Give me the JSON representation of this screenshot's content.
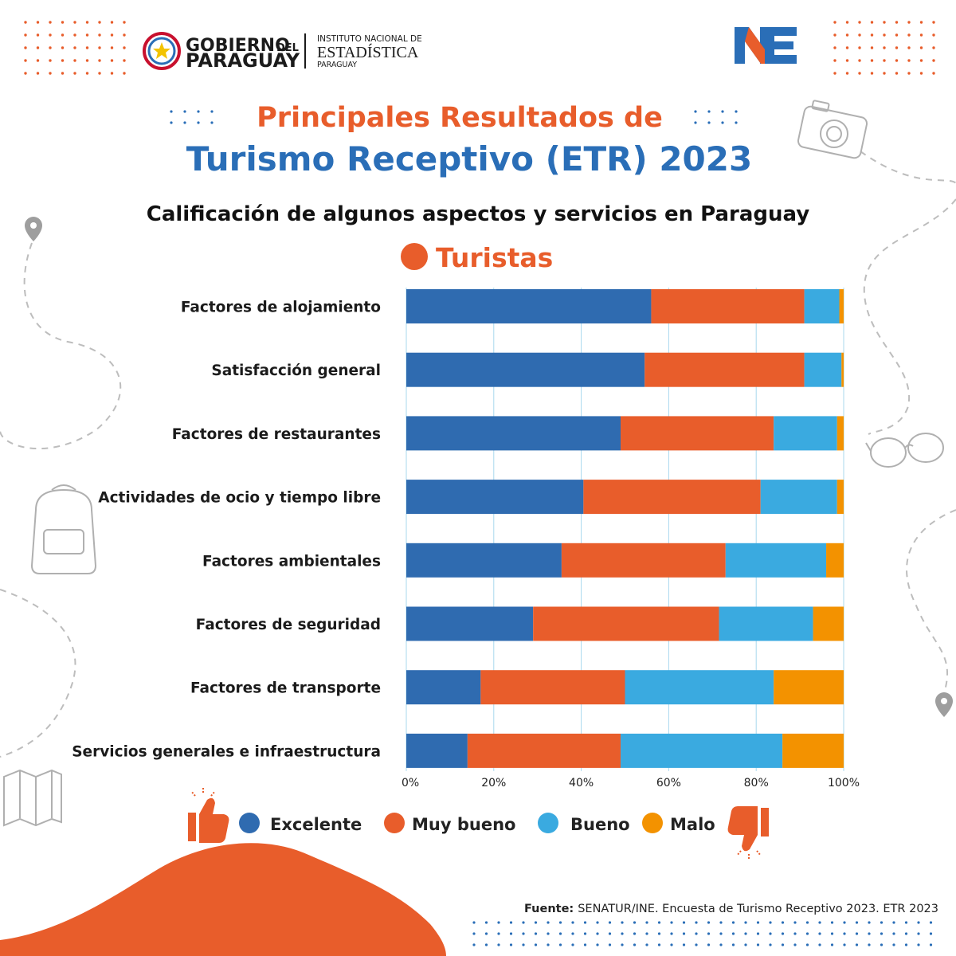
{
  "header": {
    "gov_line1": "GOBIERNO",
    "gov_line1_small": "DEL",
    "gov_line2": "PARAGUAY",
    "ine_line1": "INSTITUTO NACIONAL DE",
    "ine_line2": "ESTADÍSTICA",
    "ine_line3": "PARAGUAY",
    "logo_letters": "NE"
  },
  "title": {
    "line1": "Principales Resultados de",
    "line2": "Turismo Receptivo (ETR) 2023"
  },
  "colors": {
    "orange": "#E85D2B",
    "blue_title": "#2A6EB7",
    "excelente": "#2F6BB0",
    "muy_bueno": "#E85D2B",
    "bueno": "#3AAAE0",
    "malo": "#F39200",
    "grid": "#A9D8EE"
  },
  "chart_data": {
    "type": "bar",
    "orientation": "horizontal",
    "stacked": true,
    "title": "Calificación de algunos aspectos y servicios en Paraguay",
    "subtitle": "Turistas",
    "categories": [
      "Factores de alojamiento",
      "Satisfacción general",
      "Factores de restaurantes",
      "Actividades de ocio y tiempo libre",
      "Factores ambientales",
      "Factores de seguridad",
      "Factores de transporte",
      "Servicios generales e infraestructura"
    ],
    "series": [
      {
        "name": "Excelente",
        "values": [
          56,
          54.5,
          49,
          40.5,
          35.5,
          29,
          17,
          14
        ]
      },
      {
        "name": "Muy bueno",
        "values": [
          35,
          36.5,
          35,
          40.5,
          37.5,
          42.5,
          33,
          35
        ]
      },
      {
        "name": "Bueno",
        "values": [
          8,
          8.5,
          14.5,
          17.5,
          23,
          21.5,
          34,
          37
        ]
      },
      {
        "name": "Malo",
        "values": [
          1,
          0.5,
          1.5,
          1.5,
          4,
          7,
          16,
          14
        ]
      }
    ],
    "x_ticks": [
      "0%",
      "20%",
      "40%",
      "60%",
      "80%",
      "100%"
    ],
    "xlim": [
      0,
      100
    ],
    "grid": true,
    "legend_position": "bottom"
  },
  "footer": {
    "source_label": "Fuente:",
    "source_text": "SENATUR/INE. Encuesta de Turismo Receptivo 2023. ETR 2023"
  }
}
